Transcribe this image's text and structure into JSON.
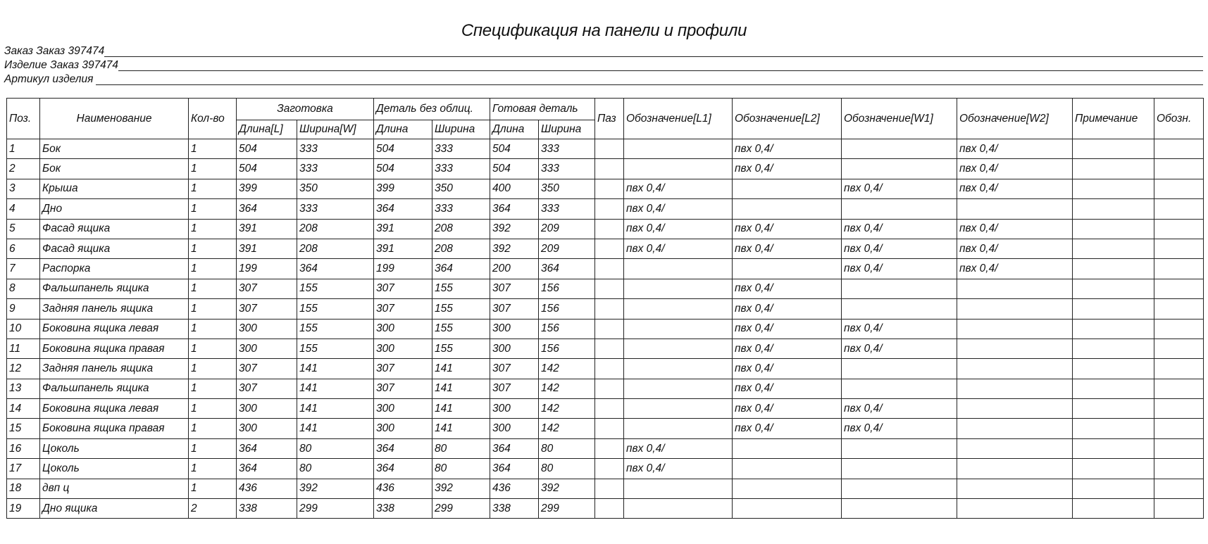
{
  "title": "Спецификация на панели и профили",
  "info": [
    {
      "label": "Заказ Заказ 397474"
    },
    {
      "label": "Изделие Заказ 397474"
    },
    {
      "label": "Артикул изделия"
    }
  ],
  "headers": {
    "pos": "Поз.",
    "name": "Наименование",
    "qty": "Кол-во",
    "blank_group": "Заготовка",
    "blank_length": "Длина[L]",
    "blank_width": "Ширина[W]",
    "raw_group": "Деталь без облиц.",
    "raw_length": "Длина",
    "raw_width": "Ширина",
    "finished_group": "Готовая деталь",
    "finished_length": "Длина",
    "finished_width": "Ширина",
    "groove": "Паз",
    "edge_l1": "Обозначение[L1]",
    "edge_l2": "Обозначение[L2]",
    "edge_w1": "Обозначение[W1]",
    "edge_w2": "Обозначение[W2]",
    "note": "Примечание",
    "code": "Обозн."
  },
  "rows": [
    [
      "1",
      "Бок",
      "1",
      "504",
      "333",
      "504",
      "333",
      "504",
      "333",
      "",
      "",
      "пвх 0,4/",
      "",
      "пвх 0,4/",
      "",
      ""
    ],
    [
      "2",
      "Бок",
      "1",
      "504",
      "333",
      "504",
      "333",
      "504",
      "333",
      "",
      "",
      "пвх 0,4/",
      "",
      "пвх 0,4/",
      "",
      ""
    ],
    [
      "3",
      "Крыша",
      "1",
      "399",
      "350",
      "399",
      "350",
      "400",
      "350",
      "",
      "пвх 0,4/",
      "",
      "пвх 0,4/",
      "пвх 0,4/",
      "",
      ""
    ],
    [
      "4",
      "Дно",
      "1",
      "364",
      "333",
      "364",
      "333",
      "364",
      "333",
      "",
      "пвх 0,4/",
      "",
      "",
      "",
      "",
      ""
    ],
    [
      "5",
      "Фасад ящика",
      "1",
      "391",
      "208",
      "391",
      "208",
      "392",
      "209",
      "",
      "пвх 0,4/",
      "пвх 0,4/",
      "пвх 0,4/",
      "пвх 0,4/",
      "",
      ""
    ],
    [
      "6",
      "Фасад ящика",
      "1",
      "391",
      "208",
      "391",
      "208",
      "392",
      "209",
      "",
      "пвх 0,4/",
      "пвх 0,4/",
      "пвх 0,4/",
      "пвх 0,4/",
      "",
      ""
    ],
    [
      "7",
      "Распорка",
      "1",
      "199",
      "364",
      "199",
      "364",
      "200",
      "364",
      "",
      "",
      "",
      "пвх 0,4/",
      "пвх 0,4/",
      "",
      ""
    ],
    [
      "8",
      "Фальшпанель ящика",
      "1",
      "307",
      "155",
      "307",
      "155",
      "307",
      "156",
      "",
      "",
      "пвх 0,4/",
      "",
      "",
      "",
      ""
    ],
    [
      "9",
      "Задняя панель ящика",
      "1",
      "307",
      "155",
      "307",
      "155",
      "307",
      "156",
      "",
      "",
      "пвх 0,4/",
      "",
      "",
      "",
      ""
    ],
    [
      "10",
      "Боковина ящика левая",
      "1",
      "300",
      "155",
      "300",
      "155",
      "300",
      "156",
      "",
      "",
      "пвх 0,4/",
      "пвх 0,4/",
      "",
      "",
      ""
    ],
    [
      "11",
      "Боковина ящика правая",
      "1",
      "300",
      "155",
      "300",
      "155",
      "300",
      "156",
      "",
      "",
      "пвх 0,4/",
      "пвх 0,4/",
      "",
      "",
      ""
    ],
    [
      "12",
      "Задняя панель ящика",
      "1",
      "307",
      "141",
      "307",
      "141",
      "307",
      "142",
      "",
      "",
      "пвх 0,4/",
      "",
      "",
      "",
      ""
    ],
    [
      "13",
      "Фальшпанель ящика",
      "1",
      "307",
      "141",
      "307",
      "141",
      "307",
      "142",
      "",
      "",
      "пвх 0,4/",
      "",
      "",
      "",
      ""
    ],
    [
      "14",
      "Боковина ящика левая",
      "1",
      "300",
      "141",
      "300",
      "141",
      "300",
      "142",
      "",
      "",
      "пвх 0,4/",
      "пвх 0,4/",
      "",
      "",
      ""
    ],
    [
      "15",
      "Боковина ящика правая",
      "1",
      "300",
      "141",
      "300",
      "141",
      "300",
      "142",
      "",
      "",
      "пвх 0,4/",
      "пвх 0,4/",
      "",
      "",
      ""
    ],
    [
      "16",
      "Цоколь",
      "1",
      "364",
      "80",
      "364",
      "80",
      "364",
      "80",
      "",
      "пвх 0,4/",
      "",
      "",
      "",
      "",
      ""
    ],
    [
      "17",
      "Цоколь",
      "1",
      "364",
      "80",
      "364",
      "80",
      "364",
      "80",
      "",
      "пвх 0,4/",
      "",
      "",
      "",
      "",
      ""
    ],
    [
      "18",
      "двп ц",
      "1",
      "436",
      "392",
      "436",
      "392",
      "436",
      "392",
      "",
      "",
      "",
      "",
      "",
      "",
      ""
    ],
    [
      "19",
      "Дно ящика",
      "2",
      "338",
      "299",
      "338",
      "299",
      "338",
      "299",
      "",
      "",
      "",
      "",
      "",
      "",
      ""
    ]
  ]
}
